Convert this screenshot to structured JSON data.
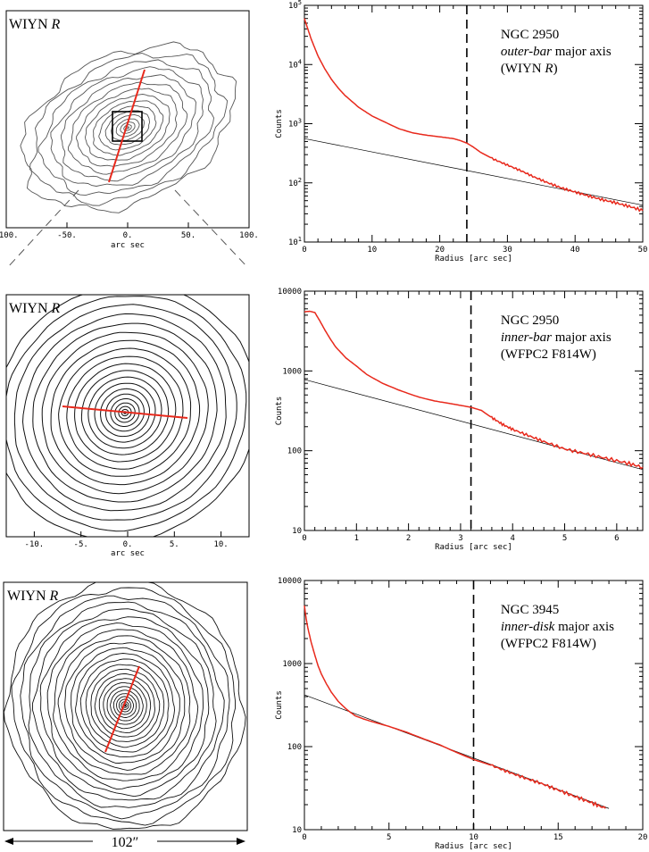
{
  "colors": {
    "profile": "#e8291c",
    "axis": "#000000",
    "fit": "#000000",
    "contour": "#555555",
    "contour_dark": "#111111"
  },
  "images": [
    {
      "label": "WIYN",
      "label_italic": "R",
      "xlabel": "arc sec",
      "xticks": [
        "-100.",
        "-50.",
        "0.",
        "50.",
        "100."
      ]
    },
    {
      "label": "WIYN",
      "label_italic": "R",
      "xlabel": "arc sec",
      "xticks": [
        "-10.",
        "-5.",
        "0.",
        "5.",
        "10."
      ]
    },
    {
      "label": "WIYN",
      "label_italic": "R",
      "scale_label": "102″"
    }
  ],
  "chart_data": [
    {
      "type": "line",
      "title_lines": [
        "NGC 2950",
        "outer-bar major axis",
        "(WIYN R)"
      ],
      "title_italic_part": "outer-bar",
      "xlabel": "Radius [arc sec]",
      "ylabel": "Counts",
      "xlim": [
        0,
        50
      ],
      "ylim": [
        10,
        100000
      ],
      "yscale": "log",
      "xticks": [
        0,
        10,
        20,
        30,
        40,
        50
      ],
      "yticks": [
        10,
        100,
        1000,
        10000,
        100000
      ],
      "ytick_labels": [
        "10^1",
        "10^2",
        "10^3",
        "10^4",
        "10^5"
      ],
      "dashed_x": 24,
      "fit_line": {
        "x": [
          0,
          50
        ],
        "y": [
          560,
          42
        ]
      },
      "series": [
        {
          "name": "profile",
          "x": [
            0,
            0.5,
            1,
            2,
            3,
            4,
            5,
            6,
            8,
            10,
            12,
            14,
            16,
            18,
            20,
            22,
            23,
            24,
            25,
            26,
            28,
            30,
            32,
            34,
            36,
            38,
            40,
            42,
            44,
            46,
            48,
            50
          ],
          "y": [
            60000,
            40000,
            27000,
            14000,
            8500,
            5600,
            4000,
            3000,
            1900,
            1350,
            1050,
            820,
            700,
            640,
            600,
            560,
            520,
            470,
            400,
            330,
            250,
            200,
            160,
            125,
            100,
            82,
            70,
            60,
            52,
            46,
            40,
            34
          ]
        }
      ]
    },
    {
      "type": "line",
      "title_lines": [
        "NGC 2950",
        "inner-bar major axis",
        "(WFPC2 F814W)"
      ],
      "title_italic_part": "inner-bar",
      "xlabel": "Radius [arc sec]",
      "ylabel": "Counts",
      "xlim": [
        0,
        6.5
      ],
      "ylim": [
        10,
        10000
      ],
      "yscale": "log",
      "xticks": [
        0,
        1,
        2,
        3,
        4,
        5,
        6
      ],
      "yticks": [
        10,
        100,
        1000,
        10000
      ],
      "ytick_labels": [
        "10",
        "100",
        "1000",
        "10000"
      ],
      "dashed_x": 3.2,
      "fit_line": {
        "x": [
          0,
          6.5
        ],
        "y": [
          780,
          58
        ]
      },
      "series": [
        {
          "name": "profile",
          "x": [
            0,
            0.1,
            0.2,
            0.3,
            0.4,
            0.5,
            0.6,
            0.8,
            1.0,
            1.2,
            1.5,
            1.8,
            2.0,
            2.2,
            2.5,
            2.8,
            3.0,
            3.2,
            3.4,
            3.6,
            3.8,
            4.0,
            4.3,
            4.6,
            5.0,
            5.4,
            5.8,
            6.2,
            6.5
          ],
          "y": [
            5500,
            5600,
            5400,
            4200,
            3200,
            2500,
            2000,
            1450,
            1150,
            900,
            700,
            580,
            520,
            470,
            420,
            390,
            370,
            350,
            320,
            260,
            215,
            185,
            155,
            130,
            105,
            92,
            80,
            70,
            62
          ]
        }
      ]
    },
    {
      "type": "line",
      "title_lines": [
        "NGC 3945",
        "inner-disk major axis",
        "(WFPC2 F814W)"
      ],
      "title_italic_part": "inner-disk",
      "xlabel": "Radius [arc sec]",
      "ylabel": "Counts",
      "xlim": [
        0,
        20
      ],
      "ylim": [
        10,
        10000
      ],
      "yscale": "log",
      "xticks": [
        0,
        5,
        10,
        15,
        20
      ],
      "yticks": [
        10,
        100,
        1000,
        10000
      ],
      "ytick_labels": [
        "10",
        "100",
        "1000",
        "10000"
      ],
      "dashed_x": 10,
      "fit_line": {
        "x": [
          0,
          18
        ],
        "y": [
          420,
          18
        ]
      },
      "series": [
        {
          "name": "profile",
          "x": [
            0,
            0.1,
            0.2,
            0.4,
            0.6,
            0.8,
            1.0,
            1.3,
            1.6,
            2.0,
            2.5,
            3.0,
            3.5,
            4,
            5,
            6,
            7,
            8,
            9,
            10,
            11,
            12,
            13,
            14,
            15,
            16,
            17,
            17.8
          ],
          "y": [
            5000,
            3500,
            2700,
            1800,
            1300,
            950,
            750,
            570,
            450,
            350,
            280,
            235,
            215,
            200,
            175,
            150,
            125,
            105,
            85,
            70,
            60,
            50,
            42,
            36,
            30,
            25,
            21,
            18
          ]
        }
      ]
    }
  ]
}
